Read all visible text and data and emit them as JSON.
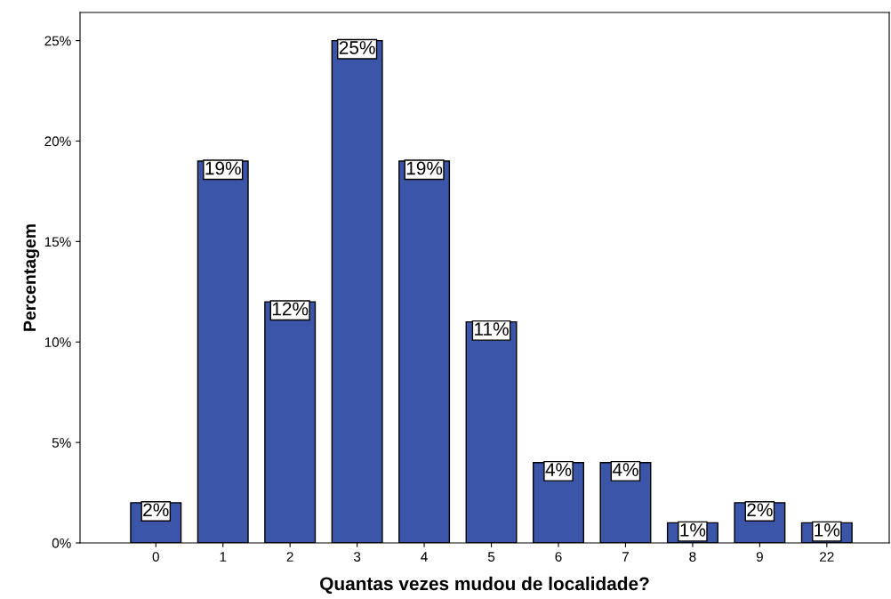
{
  "chart_data": {
    "type": "bar",
    "xlabel": "Quantas vezes mudou de localidade?",
    "ylabel": "Percentagem",
    "categories": [
      "0",
      "1",
      "2",
      "3",
      "4",
      "5",
      "6",
      "7",
      "8",
      "9",
      "22"
    ],
    "values": [
      2,
      19,
      12,
      25,
      19,
      11,
      4,
      4,
      1,
      2,
      1
    ],
    "value_labels": [
      "2%",
      "19%",
      "12%",
      "25%",
      "19%",
      "11%",
      "4%",
      "4%",
      "1%",
      "2%",
      "1%"
    ],
    "color": "#3b56a8",
    "ylim": [
      0,
      26.4
    ],
    "yticks": [
      {
        "value": 0,
        "label": "0%"
      },
      {
        "value": 5,
        "label": "5%"
      },
      {
        "value": 10,
        "label": "10%"
      },
      {
        "value": 15,
        "label": "15%"
      },
      {
        "value": 20,
        "label": "20%"
      },
      {
        "value": 25,
        "label": "25%"
      }
    ],
    "grid": false
  }
}
